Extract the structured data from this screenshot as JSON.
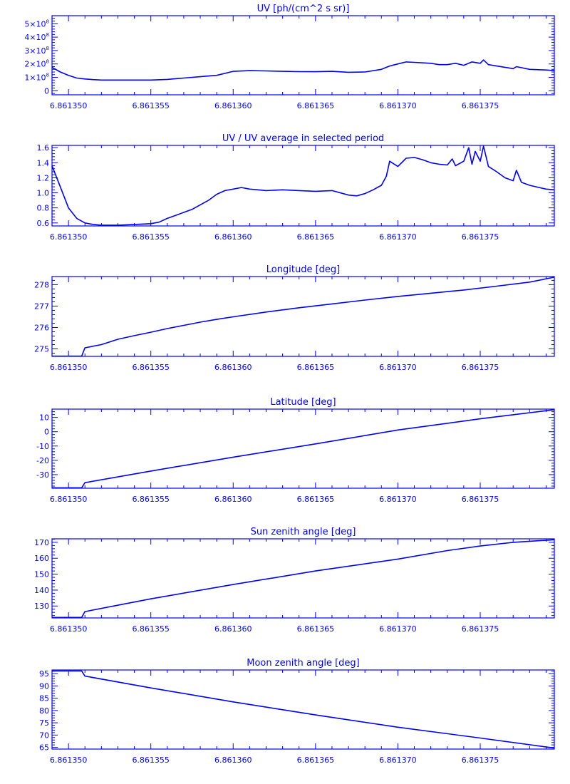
{
  "colors": {
    "plot": "#0000ff",
    "background": "#ffffff"
  },
  "chart_data": [
    {
      "type": "line",
      "title": "UV [ph/(cm^2 s sr)]",
      "xlabel": "",
      "ylabel": "",
      "xlim": [
        6.861349,
        6.8613795
      ],
      "ylim": [
        -0.3,
        5.6
      ],
      "value_multiplier": 100000000,
      "x_ticks": [
        6.86135,
        6.861355,
        6.86136,
        6.861365,
        6.86137,
        6.861375
      ],
      "x_tick_labels": [
        "6.861350",
        "6.861355",
        "6.861360",
        "6.861365",
        "6.861370",
        "6.861375"
      ],
      "y_ticks": [
        0,
        1,
        2,
        3,
        4,
        5
      ],
      "y_tick_labels": [
        {
          "base": "0",
          "sup": ""
        },
        {
          "base": "1×10",
          "sup": "8"
        },
        {
          "base": "2×10",
          "sup": "8"
        },
        {
          "base": "3×10",
          "sup": "8"
        },
        {
          "base": "4×10",
          "sup": "8"
        },
        {
          "base": "5×10",
          "sup": "8"
        }
      ],
      "grid": false,
      "series": [
        {
          "x": [
            6.861349,
            6.8613495,
            6.86135,
            6.8613505,
            6.861351,
            6.8613515,
            6.861352,
            6.861353,
            6.861354,
            6.861355,
            6.861356,
            6.861357,
            6.861358,
            6.861359,
            6.86136,
            6.861361,
            6.861362,
            6.861363,
            6.861364,
            6.861365,
            6.861366,
            6.861367,
            6.861368,
            6.861369,
            6.8613695,
            6.86137,
            6.8613705,
            6.861371,
            6.861372,
            6.8613725,
            6.861373,
            6.8613735,
            6.861374,
            6.8613745,
            6.861375,
            6.8613752,
            6.8613755,
            6.861376,
            6.861377,
            6.8613772,
            6.861378,
            6.861379,
            6.8613795
          ],
          "y": [
            1.75,
            1.4,
            1.15,
            0.95,
            0.88,
            0.83,
            0.8,
            0.8,
            0.8,
            0.8,
            0.85,
            0.95,
            1.05,
            1.15,
            1.45,
            1.5,
            1.48,
            1.45,
            1.43,
            1.42,
            1.45,
            1.38,
            1.4,
            1.6,
            1.85,
            2.0,
            2.15,
            2.12,
            2.05,
            1.95,
            1.95,
            2.05,
            1.9,
            2.15,
            2.05,
            2.3,
            1.95,
            1.85,
            1.65,
            1.8,
            1.6,
            1.55,
            1.5
          ]
        }
      ]
    },
    {
      "type": "line",
      "title": "UV / UV average in selected period",
      "xlabel": "",
      "ylabel": "",
      "xlim": [
        6.861349,
        6.8613795
      ],
      "ylim": [
        0.56,
        1.63
      ],
      "x_ticks": [
        6.86135,
        6.861355,
        6.86136,
        6.861365,
        6.86137,
        6.861375
      ],
      "x_tick_labels": [
        "6.861350",
        "6.861355",
        "6.861360",
        "6.861365",
        "6.861370",
        "6.861375"
      ],
      "y_ticks": [
        0.6,
        0.8,
        1.0,
        1.2,
        1.4,
        1.6
      ],
      "y_tick_labels": [
        "0.6",
        "0.8",
        "1.0",
        "1.2",
        "1.4",
        "1.6"
      ],
      "grid": false,
      "series": [
        {
          "x": [
            6.861349,
            6.8613495,
            6.86135,
            6.8613505,
            6.861351,
            6.8613515,
            6.861352,
            6.861353,
            6.861354,
            6.861355,
            6.8613555,
            6.861356,
            6.8613565,
            6.861357,
            6.8613575,
            6.861358,
            6.8613585,
            6.861359,
            6.8613595,
            6.86136,
            6.8613605,
            6.861361,
            6.8613615,
            6.861362,
            6.861363,
            6.861364,
            6.861365,
            6.861366,
            6.861367,
            6.8613675,
            6.861368,
            6.8613685,
            6.861369,
            6.8613693,
            6.8613695,
            6.86137,
            6.8613705,
            6.861371,
            6.8613715,
            6.861372,
            6.8613725,
            6.861373,
            6.8613733,
            6.8613735,
            6.861374,
            6.8613743,
            6.8613745,
            6.8613747,
            6.861375,
            6.8613752,
            6.8613755,
            6.861376,
            6.8613765,
            6.861377,
            6.8613772,
            6.8613775,
            6.861378,
            6.861379,
            6.8613795
          ],
          "y": [
            1.36,
            1.08,
            0.8,
            0.66,
            0.6,
            0.58,
            0.57,
            0.57,
            0.58,
            0.59,
            0.61,
            0.66,
            0.7,
            0.74,
            0.78,
            0.84,
            0.9,
            0.98,
            1.03,
            1.05,
            1.07,
            1.05,
            1.04,
            1.03,
            1.04,
            1.03,
            1.02,
            1.03,
            0.97,
            0.96,
            0.99,
            1.04,
            1.1,
            1.22,
            1.42,
            1.35,
            1.46,
            1.47,
            1.44,
            1.4,
            1.38,
            1.37,
            1.45,
            1.36,
            1.42,
            1.6,
            1.38,
            1.55,
            1.42,
            1.62,
            1.35,
            1.28,
            1.2,
            1.16,
            1.3,
            1.14,
            1.1,
            1.05,
            1.04
          ]
        }
      ]
    },
    {
      "type": "line",
      "title": "Longitude [deg]",
      "xlabel": "",
      "ylabel": "",
      "xlim": [
        6.861349,
        6.8613795
      ],
      "ylim": [
        274.65,
        278.38
      ],
      "x_ticks": [
        6.86135,
        6.861355,
        6.86136,
        6.861365,
        6.86137,
        6.861375
      ],
      "x_tick_labels": [
        "6.861350",
        "6.861355",
        "6.861360",
        "6.861365",
        "6.861370",
        "6.861375"
      ],
      "y_ticks": [
        275,
        276,
        277,
        278
      ],
      "y_tick_labels": [
        "275",
        "276",
        "277",
        "278"
      ],
      "grid": false,
      "series": [
        {
          "x": [
            6.861349,
            6.86135,
            6.8613508,
            6.861351,
            6.861352,
            6.861353,
            6.861354,
            6.861355,
            6.861356,
            6.861357,
            6.861358,
            6.861359,
            6.86136,
            6.861362,
            6.861364,
            6.861366,
            6.861368,
            6.86137,
            6.861372,
            6.861374,
            6.861376,
            6.861378,
            6.8613795
          ],
          "y": [
            274.66,
            274.66,
            274.66,
            275.05,
            275.2,
            275.45,
            275.62,
            275.78,
            275.95,
            276.1,
            276.25,
            276.38,
            276.5,
            276.72,
            276.92,
            277.1,
            277.28,
            277.45,
            277.6,
            277.75,
            277.93,
            278.12,
            278.35
          ]
        }
      ]
    },
    {
      "type": "line",
      "title": "Latitude [deg]",
      "xlabel": "",
      "ylabel": "",
      "xlim": [
        6.861349,
        6.8613795
      ],
      "ylim": [
        -39.5,
        15.8
      ],
      "x_ticks": [
        6.86135,
        6.861355,
        6.86136,
        6.861365,
        6.86137,
        6.861375
      ],
      "x_tick_labels": [
        "6.861350",
        "6.861355",
        "6.861360",
        "6.861365",
        "6.861370",
        "6.861375"
      ],
      "y_ticks": [
        -30,
        -20,
        -10,
        0,
        10
      ],
      "y_tick_labels": [
        "-30",
        "-20",
        "-10",
        "0",
        "10"
      ],
      "grid": false,
      "series": [
        {
          "x": [
            6.861349,
            6.86135,
            6.8613508,
            6.861351,
            6.861355,
            6.86136,
            6.861365,
            6.86137,
            6.861375,
            6.8613795
          ],
          "y": [
            -39.2,
            -39.2,
            -39.2,
            -35.6,
            -27.5,
            -17.8,
            -8.5,
            1.2,
            9.0,
            15.4
          ]
        }
      ]
    },
    {
      "type": "line",
      "title": "Sun zenith angle [deg]",
      "xlabel": "",
      "ylabel": "",
      "xlim": [
        6.861349,
        6.8613795
      ],
      "ylim": [
        122.5,
        172.2
      ],
      "x_ticks": [
        6.86135,
        6.861355,
        6.86136,
        6.861365,
        6.86137,
        6.861375
      ],
      "x_tick_labels": [
        "6.861350",
        "6.861355",
        "6.861360",
        "6.861365",
        "6.861370",
        "6.861375"
      ],
      "y_ticks": [
        130,
        140,
        150,
        160,
        170
      ],
      "y_tick_labels": [
        "130",
        "140",
        "150",
        "160",
        "170"
      ],
      "grid": false,
      "series": [
        {
          "x": [
            6.861349,
            6.86135,
            6.8613508,
            6.861351,
            6.861355,
            6.86136,
            6.861365,
            6.86137,
            6.861373,
            6.861375,
            6.861377,
            6.8613795
          ],
          "y": [
            122.8,
            122.8,
            122.8,
            126.5,
            134.5,
            143.5,
            152.0,
            159.5,
            164.8,
            167.7,
            170.0,
            171.6
          ]
        }
      ]
    },
    {
      "type": "line",
      "title": "Moon zenith angle [deg]",
      "xlabel": "",
      "ylabel": "",
      "xlim": [
        6.861349,
        6.8613795
      ],
      "ylim": [
        64.3,
        96.5
      ],
      "x_ticks": [
        6.86135,
        6.861355,
        6.86136,
        6.861365,
        6.86137,
        6.861375
      ],
      "x_tick_labels": [
        "6.861350",
        "6.861355",
        "6.861360",
        "6.861365",
        "6.861370",
        "6.861375"
      ],
      "y_ticks": [
        65,
        70,
        75,
        80,
        85,
        90,
        95
      ],
      "y_tick_labels": [
        "65",
        "70",
        "75",
        "80",
        "85",
        "90",
        "95"
      ],
      "grid": false,
      "series": [
        {
          "x": [
            6.861349,
            6.86135,
            6.8613508,
            6.861351,
            6.861355,
            6.86136,
            6.861365,
            6.86137,
            6.861375,
            6.8613795
          ],
          "y": [
            96.1,
            96.1,
            96.1,
            94.0,
            89.2,
            83.5,
            78.2,
            73.2,
            68.8,
            64.7
          ]
        }
      ]
    }
  ]
}
